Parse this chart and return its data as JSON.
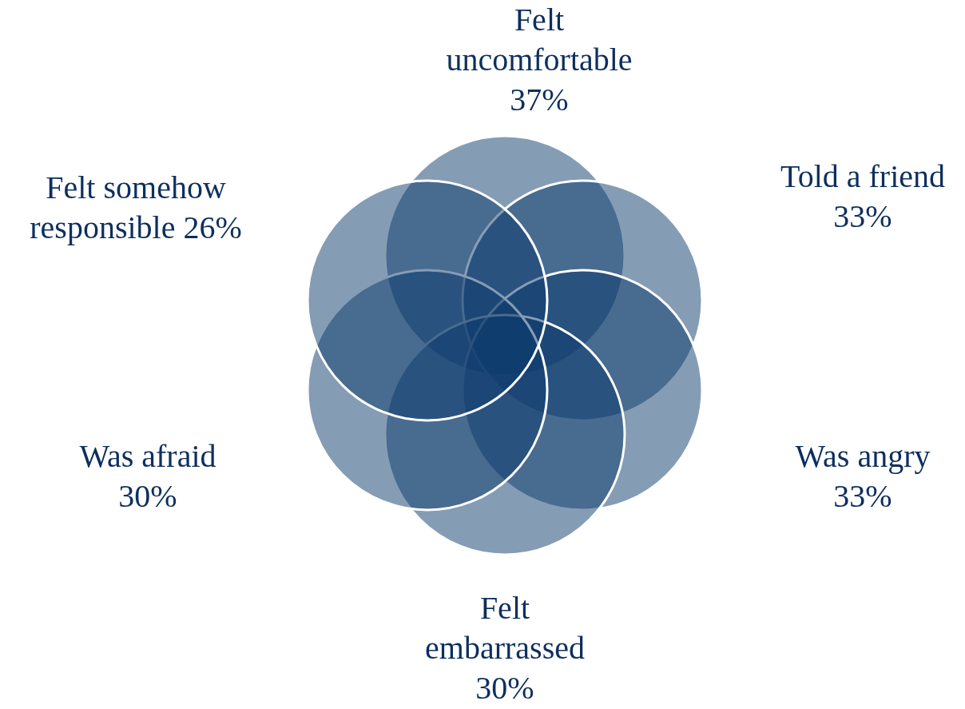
{
  "chart_data": {
    "type": "other",
    "categories": [
      "Felt uncomfortable",
      "Told a friend",
      "Was angry",
      "Felt embarrassed",
      "Was afraid",
      "Felt somehow responsible"
    ],
    "values": [
      37,
      33,
      33,
      30,
      30,
      26
    ],
    "value_labels": [
      "37%",
      "33%",
      "33%",
      "30%",
      "30%",
      "26%"
    ],
    "color": "#0b3a6b"
  }
}
